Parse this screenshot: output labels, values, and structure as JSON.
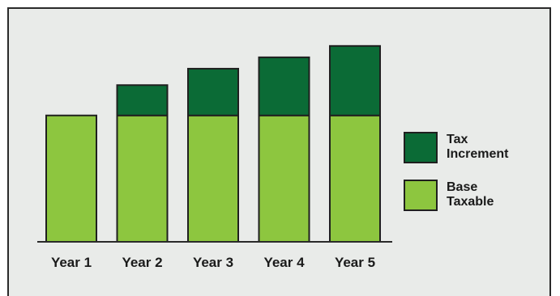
{
  "chart_data": {
    "type": "bar",
    "stacked": true,
    "categories": [
      "Year 1",
      "Year 2",
      "Year 3",
      "Year 4",
      "Year 5"
    ],
    "series": [
      {
        "name": "Base Taxable",
        "legend_lines": [
          "Base",
          "Taxable"
        ],
        "values": [
          100,
          100,
          100,
          100,
          100
        ],
        "color": "#8dc63f"
      },
      {
        "name": "Tax Increment",
        "legend_lines": [
          "Tax",
          "Increment"
        ],
        "values": [
          0,
          24,
          37,
          46,
          55
        ],
        "color": "#0b6b36"
      }
    ],
    "ylim": [
      0,
      160
    ],
    "legend_position": "right",
    "grid": false
  }
}
